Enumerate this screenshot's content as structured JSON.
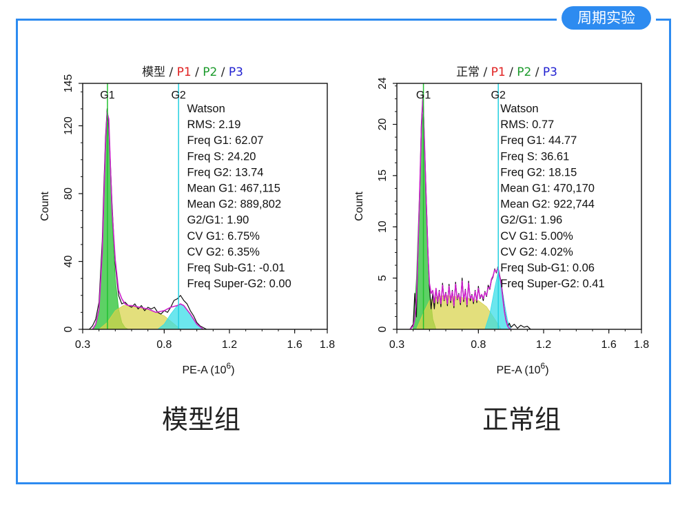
{
  "badge": "周期实验",
  "chart_data": [
    {
      "type": "area",
      "title_parts": [
        {
          "text": "模型",
          "color": "#222222"
        },
        {
          "text": " / ",
          "color": "#222222"
        },
        {
          "text": "P1",
          "color": "#e02020"
        },
        {
          "text": " / ",
          "color": "#222222"
        },
        {
          "text": "P2",
          "color": "#1a9a2a"
        },
        {
          "text": " / ",
          "color": "#222222"
        },
        {
          "text": "P3",
          "color": "#2020d0"
        }
      ],
      "xlabel": "PE-A",
      "xunit_base": "(10",
      "xunit_exp": "6",
      "xunit_close": ")",
      "ylabel": "Count",
      "xlim": [
        0.3,
        1.8
      ],
      "ylim": [
        0,
        145
      ],
      "xticks": [
        0.3,
        0.8,
        1.2,
        1.6,
        1.8
      ],
      "xtick_labels": [
        "0.3",
        "0.8",
        "1.2",
        "1.6",
        "1.8"
      ],
      "yticks": [
        0,
        40,
        80,
        120,
        145
      ],
      "ytick_labels": [
        "0",
        "40",
        "80",
        "120",
        "145"
      ],
      "markers": [
        {
          "label": "G1",
          "x": 0.452
        },
        {
          "label": "G2",
          "x": 0.888
        }
      ],
      "stats": [
        "Watson",
        "RMS: 2.19",
        "Freq G1: 62.07",
        "Freq S: 24.20",
        "Freq G2: 13.74",
        "Mean G1: 467,115",
        "Mean G2: 889,802",
        "G2/G1: 1.90",
        "CV G1: 6.75%",
        "CV G2: 6.35%",
        "Freq Sub-G1: -0.01",
        "Freq Super-G2: 0.00"
      ],
      "series": [
        {
          "name": "G1",
          "x": [
            0.36,
            0.38,
            0.4,
            0.42,
            0.44,
            0.45,
            0.46,
            0.47,
            0.48,
            0.5,
            0.52,
            0.54,
            0.56,
            0.58
          ],
          "y": [
            0,
            3,
            12,
            45,
            105,
            124,
            118,
            92,
            65,
            30,
            12,
            4,
            1,
            0
          ],
          "color": "#1fbf2a"
        },
        {
          "name": "S",
          "x": [
            0.4,
            0.45,
            0.5,
            0.55,
            0.6,
            0.65,
            0.7,
            0.75,
            0.8,
            0.85,
            0.9
          ],
          "y": [
            0,
            4,
            11,
            14,
            14,
            13,
            12,
            10,
            8,
            4,
            0
          ],
          "color": "#d8d24a"
        },
        {
          "name": "G2",
          "x": [
            0.76,
            0.8,
            0.84,
            0.88,
            0.9,
            0.92,
            0.96,
            1.0,
            1.04
          ],
          "y": [
            0,
            3,
            9,
            14,
            15,
            14,
            9,
            3,
            0
          ],
          "color": "#33dde8"
        },
        {
          "name": "Data",
          "x": [
            0.34,
            0.36,
            0.38,
            0.4,
            0.42,
            0.43,
            0.44,
            0.45,
            0.46,
            0.47,
            0.48,
            0.49,
            0.5,
            0.52,
            0.54,
            0.56,
            0.58,
            0.6,
            0.62,
            0.64,
            0.66,
            0.68,
            0.7,
            0.72,
            0.74,
            0.76,
            0.78,
            0.8,
            0.82,
            0.84,
            0.86,
            0.88,
            0.9,
            0.92,
            0.94,
            0.96,
            0.98,
            1.0,
            1.02,
            1.04,
            1.06
          ],
          "y": [
            0,
            2,
            6,
            16,
            52,
            85,
            113,
            130,
            120,
            98,
            74,
            55,
            38,
            20,
            15,
            16,
            14,
            13,
            15,
            12,
            14,
            11,
            13,
            12,
            13,
            10,
            9,
            11,
            10,
            13,
            17,
            18,
            20,
            17,
            15,
            11,
            8,
            4,
            2,
            1,
            0
          ],
          "color": "#111111"
        },
        {
          "name": "Fit",
          "x": [
            0.36,
            0.38,
            0.4,
            0.42,
            0.44,
            0.45,
            0.46,
            0.47,
            0.48,
            0.5,
            0.52,
            0.54,
            0.56,
            0.58,
            0.6,
            0.65,
            0.7,
            0.75,
            0.8,
            0.84,
            0.88,
            0.9,
            0.92,
            0.96,
            1.0,
            1.04
          ],
          "y": [
            0,
            3,
            12,
            45,
            109,
            128,
            124,
            97,
            70,
            41,
            23,
            18,
            15,
            14,
            14,
            13,
            12,
            10,
            11,
            13,
            14,
            15,
            14,
            9,
            3,
            0
          ],
          "color": "#cc22cc"
        }
      ]
    },
    {
      "type": "area",
      "title_parts": [
        {
          "text": "正常",
          "color": "#222222"
        },
        {
          "text": " / ",
          "color": "#222222"
        },
        {
          "text": "P1",
          "color": "#e02020"
        },
        {
          "text": " / ",
          "color": "#222222"
        },
        {
          "text": "P2",
          "color": "#1a9a2a"
        },
        {
          "text": " / ",
          "color": "#222222"
        },
        {
          "text": "P3",
          "color": "#2020d0"
        }
      ],
      "xlabel": "PE-A",
      "xunit_base": "(10",
      "xunit_exp": "6",
      "xunit_close": ")",
      "ylabel": "Count",
      "xlim": [
        0.3,
        1.8
      ],
      "ylim": [
        0,
        24
      ],
      "xticks": [
        0.3,
        0.8,
        1.2,
        1.6,
        1.8
      ],
      "xtick_labels": [
        "0.3",
        "0.8",
        "1.2",
        "1.6",
        "1.8"
      ],
      "yticks": [
        0,
        5,
        10,
        15,
        20,
        24
      ],
      "ytick_labels": [
        "0",
        "5",
        "10",
        "15",
        "20",
        "24"
      ],
      "markers": [
        {
          "label": "G1",
          "x": 0.463
        },
        {
          "label": "G2",
          "x": 0.922
        }
      ],
      "stats": [
        "Watson",
        "RMS: 0.77",
        "Freq G1: 44.77",
        "Freq S: 36.61",
        "Freq G2: 18.15",
        "Mean G1: 470,170",
        "Mean G2: 922,744",
        "G2/G1: 1.96",
        "CV G1: 5.00%",
        "CV G2: 4.02%",
        "Freq Sub-G1: 0.06",
        "Freq Super-G2: 0.41"
      ],
      "series": [
        {
          "name": "G1",
          "x": [
            0.4,
            0.42,
            0.44,
            0.45,
            0.46,
            0.47,
            0.48,
            0.5,
            0.52,
            0.54
          ],
          "y": [
            0,
            5,
            14,
            19,
            21,
            17,
            11,
            4,
            1,
            0
          ],
          "color": "#1fbf2a"
        },
        {
          "name": "S",
          "x": [
            0.42,
            0.46,
            0.5,
            0.55,
            0.6,
            0.65,
            0.7,
            0.75,
            0.8,
            0.85,
            0.9,
            0.94
          ],
          "y": [
            0,
            1.5,
            2.8,
            3.2,
            3.3,
            3.2,
            3.1,
            3.0,
            2.8,
            2.2,
            1,
            0
          ],
          "color": "#d8d24a"
        },
        {
          "name": "G2",
          "x": [
            0.84,
            0.87,
            0.9,
            0.92,
            0.94,
            0.96,
            0.98,
            1.0
          ],
          "y": [
            0,
            1.5,
            4.0,
            5.5,
            4.5,
            2.5,
            0.8,
            0
          ],
          "color": "#33dde8"
        },
        {
          "name": "Data",
          "x": [
            0.38,
            0.4,
            0.41,
            0.42,
            0.43,
            0.44,
            0.45,
            0.46,
            0.47,
            0.48,
            0.49,
            0.5,
            0.51,
            0.52,
            0.53,
            0.54,
            0.55,
            0.56,
            0.57,
            0.58,
            0.59,
            0.6,
            0.61,
            0.62,
            0.63,
            0.64,
            0.65,
            0.66,
            0.67,
            0.68,
            0.69,
            0.7,
            0.71,
            0.72,
            0.73,
            0.74,
            0.75,
            0.76,
            0.77,
            0.78,
            0.79,
            0.8,
            0.81,
            0.82,
            0.83,
            0.84,
            0.85,
            0.86,
            0.87,
            0.88,
            0.89,
            0.9,
            0.91,
            0.92,
            0.93,
            0.94,
            0.95,
            0.96,
            0.97,
            0.98,
            0.99,
            1.0,
            1.02,
            1.04,
            1.06,
            1.08,
            1.1,
            1.12
          ],
          "y": [
            0,
            0.5,
            3.5,
            1.2,
            8,
            13,
            20,
            23,
            18,
            13,
            8,
            4,
            2,
            3.5,
            2,
            4,
            2.5,
            3.8,
            2.2,
            4.5,
            2.8,
            3.6,
            2.3,
            4.4,
            2.6,
            3.8,
            2.1,
            4.6,
            2.9,
            3.5,
            2.4,
            5,
            2.7,
            3.9,
            2.2,
            4.7,
            2.8,
            3.4,
            2.5,
            3.8,
            2.6,
            4.2,
            3,
            3.4,
            2.8,
            3.7,
            3.2,
            4.3,
            3.9,
            4.8,
            5.1,
            5.9,
            5.5,
            6.1,
            5.3,
            4.6,
            3.2,
            1.8,
            0.9,
            0.3,
            0.6,
            0.2,
            0.5,
            0.1,
            0.4,
            0.2,
            0.3,
            0
          ],
          "color": "#111111"
        },
        {
          "name": "Fit",
          "x": [
            0.38,
            0.4,
            0.41,
            0.42,
            0.43,
            0.44,
            0.45,
            0.46,
            0.47,
            0.48,
            0.49,
            0.5,
            0.51,
            0.52,
            0.53,
            0.54,
            0.55,
            0.56,
            0.57,
            0.58,
            0.59,
            0.6,
            0.61,
            0.62,
            0.63,
            0.64,
            0.65,
            0.66,
            0.67,
            0.68,
            0.69,
            0.7,
            0.71,
            0.72,
            0.73,
            0.74,
            0.75,
            0.76,
            0.77,
            0.78,
            0.79,
            0.8,
            0.81,
            0.82,
            0.83,
            0.84,
            0.85,
            0.86,
            0.87,
            0.88,
            0.89,
            0.9,
            0.91,
            0.92,
            0.93,
            0.94,
            0.95,
            0.96,
            0.97,
            0.98,
            0.99,
            1.0
          ],
          "y": [
            0,
            0.3,
            1,
            3,
            8,
            13.5,
            19.5,
            22.5,
            18,
            12.5,
            7.5,
            4.5,
            3.5,
            3.8,
            2.6,
            4,
            2.7,
            3.7,
            2.5,
            4.3,
            2.9,
            3.5,
            2.5,
            4.2,
            2.8,
            3.7,
            2.3,
            4.4,
            3,
            3.4,
            2.6,
            4.7,
            2.9,
            3.8,
            2.4,
            4.5,
            3,
            3.3,
            2.7,
            3.7,
            2.8,
            4,
            3.1,
            3.4,
            3,
            3.6,
            3.3,
            4.1,
            4,
            4.9,
            5.2,
            5.8,
            5.6,
            6,
            5.2,
            4.4,
            3,
            1.7,
            0.8,
            0.3,
            0.1,
            0
          ],
          "color": "#cc22cc"
        }
      ]
    }
  ],
  "captions": [
    "模型组",
    "正常组"
  ]
}
